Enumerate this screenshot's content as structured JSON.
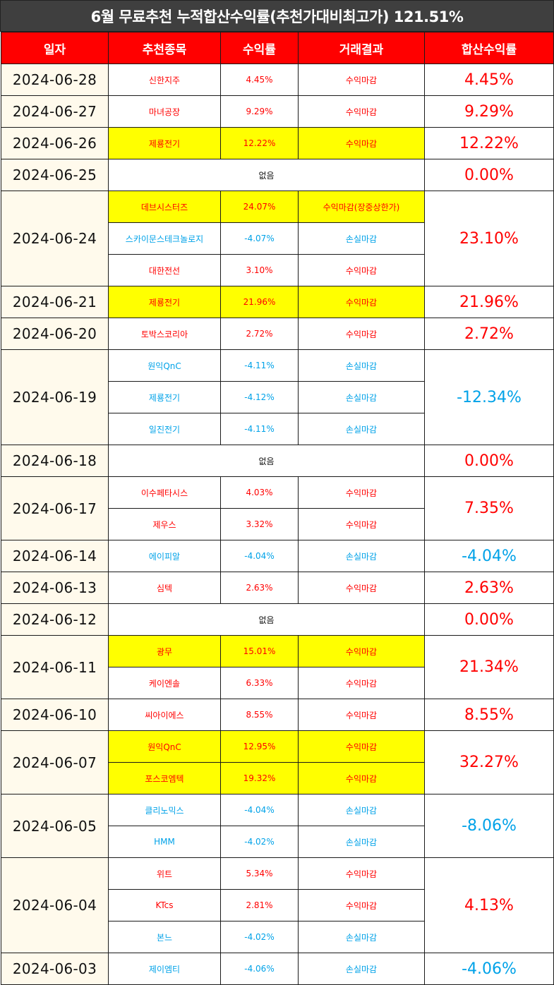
{
  "title": "6월 무료추천 누적합산수익률(추천가대비최고가) 121.51%",
  "headers": [
    "일자",
    "추천종목",
    "수익률",
    "거래결과",
    "합산수익률"
  ],
  "none_label": "없음",
  "colors": {
    "profit": "#ff0000",
    "loss": "#00a2e8",
    "highlight": "#ffff00",
    "header": "#ff0000",
    "title_bar": "#3f3f3f",
    "date_bg": "#fffaec"
  },
  "days": [
    {
      "date": "2024-06-28",
      "total": "4.45%",
      "total_dir": "up",
      "stocks": [
        {
          "name": "신한지주",
          "rate": "4.45%",
          "result": "수익마감",
          "dir": "up",
          "highlight": false
        }
      ]
    },
    {
      "date": "2024-06-27",
      "total": "9.29%",
      "total_dir": "up",
      "stocks": [
        {
          "name": "마녀공장",
          "rate": "9.29%",
          "result": "수익마감",
          "dir": "up",
          "highlight": false
        }
      ]
    },
    {
      "date": "2024-06-26",
      "total": "12.22%",
      "total_dir": "up",
      "stocks": [
        {
          "name": "제룡전기",
          "rate": "12.22%",
          "result": "수익마감",
          "dir": "up",
          "highlight": true
        }
      ]
    },
    {
      "date": "2024-06-25",
      "total": "0.00%",
      "total_dir": "up",
      "stocks": []
    },
    {
      "date": "2024-06-24",
      "total": "23.10%",
      "total_dir": "up",
      "stocks": [
        {
          "name": "데브시스터즈",
          "rate": "24.07%",
          "result": "수익마감(장중상한가)",
          "dir": "up",
          "highlight": true
        },
        {
          "name": "스카이문스테크놀로지",
          "rate": "-4.07%",
          "result": "손실마감",
          "dir": "down",
          "highlight": false
        },
        {
          "name": "대한전선",
          "rate": "3.10%",
          "result": "수익마감",
          "dir": "up",
          "highlight": false
        }
      ]
    },
    {
      "date": "2024-06-21",
      "total": "21.96%",
      "total_dir": "up",
      "stocks": [
        {
          "name": "제룡전기",
          "rate": "21.96%",
          "result": "수익마감",
          "dir": "up",
          "highlight": true
        }
      ]
    },
    {
      "date": "2024-06-20",
      "total": "2.72%",
      "total_dir": "up",
      "stocks": [
        {
          "name": "토박스코리아",
          "rate": "2.72%",
          "result": "수익마감",
          "dir": "up",
          "highlight": false
        }
      ]
    },
    {
      "date": "2024-06-19",
      "total": "-12.34%",
      "total_dir": "down",
      "stocks": [
        {
          "name": "원익QnC",
          "rate": "-4.11%",
          "result": "손실마감",
          "dir": "down",
          "highlight": false
        },
        {
          "name": "제룡전기",
          "rate": "-4.12%",
          "result": "손실마감",
          "dir": "down",
          "highlight": false
        },
        {
          "name": "일진전기",
          "rate": "-4.11%",
          "result": "손실마감",
          "dir": "down",
          "highlight": false
        }
      ]
    },
    {
      "date": "2024-06-18",
      "total": "0.00%",
      "total_dir": "up",
      "stocks": []
    },
    {
      "date": "2024-06-17",
      "total": "7.35%",
      "total_dir": "up",
      "stocks": [
        {
          "name": "이수페타시스",
          "rate": "4.03%",
          "result": "수익마감",
          "dir": "up",
          "highlight": false
        },
        {
          "name": "제우스",
          "rate": "3.32%",
          "result": "수익마감",
          "dir": "up",
          "highlight": false
        }
      ]
    },
    {
      "date": "2024-06-14",
      "total": "-4.04%",
      "total_dir": "down",
      "stocks": [
        {
          "name": "에이피알",
          "rate": "-4.04%",
          "result": "손실마감",
          "dir": "down",
          "highlight": false
        }
      ]
    },
    {
      "date": "2024-06-13",
      "total": "2.63%",
      "total_dir": "up",
      "stocks": [
        {
          "name": "심텍",
          "rate": "2.63%",
          "result": "수익마감",
          "dir": "up",
          "highlight": false
        }
      ]
    },
    {
      "date": "2024-06-12",
      "total": "0.00%",
      "total_dir": "up",
      "stocks": []
    },
    {
      "date": "2024-06-11",
      "total": "21.34%",
      "total_dir": "up",
      "stocks": [
        {
          "name": "광무",
          "rate": "15.01%",
          "result": "수익마감",
          "dir": "up",
          "highlight": true
        },
        {
          "name": "케이엔솔",
          "rate": "6.33%",
          "result": "수익마감",
          "dir": "up",
          "highlight": false
        }
      ]
    },
    {
      "date": "2024-06-10",
      "total": "8.55%",
      "total_dir": "up",
      "stocks": [
        {
          "name": "씨아이에스",
          "rate": "8.55%",
          "result": "수익마감",
          "dir": "up",
          "highlight": false
        }
      ]
    },
    {
      "date": "2024-06-07",
      "total": "32.27%",
      "total_dir": "up",
      "stocks": [
        {
          "name": "원익QnC",
          "rate": "12.95%",
          "result": "수익마감",
          "dir": "up",
          "highlight": true
        },
        {
          "name": "포스코엠텍",
          "rate": "19.32%",
          "result": "수익마감",
          "dir": "up",
          "highlight": true
        }
      ]
    },
    {
      "date": "2024-06-05",
      "total": "-8.06%",
      "total_dir": "down",
      "stocks": [
        {
          "name": "클리노믹스",
          "rate": "-4.04%",
          "result": "손실마감",
          "dir": "down",
          "highlight": false
        },
        {
          "name": "HMM",
          "rate": "-4.02%",
          "result": "손실마감",
          "dir": "down",
          "highlight": false
        }
      ]
    },
    {
      "date": "2024-06-04",
      "total": "4.13%",
      "total_dir": "up",
      "stocks": [
        {
          "name": "위트",
          "rate": "5.34%",
          "result": "수익마감",
          "dir": "up",
          "highlight": false
        },
        {
          "name": "KTcs",
          "rate": "2.81%",
          "result": "수익마감",
          "dir": "up",
          "highlight": false
        },
        {
          "name": "본느",
          "rate": "-4.02%",
          "result": "손실마감",
          "dir": "down",
          "highlight": false
        }
      ]
    },
    {
      "date": "2024-06-03",
      "total": "-4.06%",
      "total_dir": "down",
      "stocks": [
        {
          "name": "제이엠티",
          "rate": "-4.06%",
          "result": "손실마감",
          "dir": "down",
          "highlight": false
        }
      ]
    }
  ]
}
